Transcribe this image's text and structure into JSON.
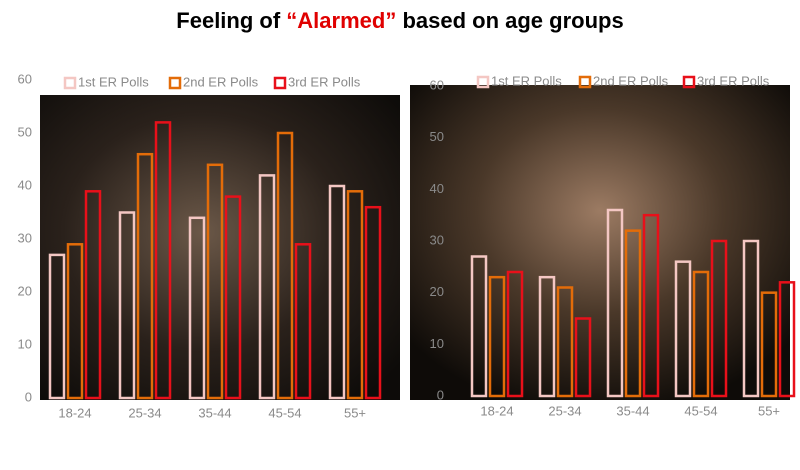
{
  "title": {
    "before": "Feeling of ",
    "highlight": "“Alarmed”",
    "after": " based on age groups"
  },
  "chart_data": [
    {
      "type": "bar",
      "categories": [
        "18-24",
        "25-34",
        "35-44",
        "45-54",
        "55+"
      ],
      "series": [
        {
          "name": "1st ER Polls",
          "color": "#f4c7c3",
          "values": [
            27,
            35,
            34,
            42,
            40
          ]
        },
        {
          "name": "2nd ER Polls",
          "color": "#e36c09",
          "values": [
            29,
            46,
            44,
            50,
            39
          ]
        },
        {
          "name": "3rd ER Polls",
          "color": "#e8101a",
          "values": [
            39,
            52,
            38,
            29,
            36
          ]
        }
      ],
      "ylim": [
        0,
        60
      ],
      "yticks": [
        0,
        10,
        20,
        30,
        40,
        50,
        60
      ],
      "legend": "top"
    },
    {
      "type": "bar",
      "categories": [
        "18-24",
        "25-34",
        "35-44",
        "45-54",
        "55+"
      ],
      "series": [
        {
          "name": "1st ER Polls",
          "color": "#f4c7c3",
          "values": [
            27,
            23,
            36,
            26,
            30
          ]
        },
        {
          "name": "2nd ER Polls",
          "color": "#e36c09",
          "values": [
            23,
            21,
            32,
            24,
            20
          ]
        },
        {
          "name": "3rd ER Polls",
          "color": "#e8101a",
          "values": [
            24,
            15,
            35,
            30,
            22
          ]
        }
      ],
      "ylim": [
        0,
        60
      ],
      "yticks": [
        0,
        10,
        20,
        30,
        40,
        50,
        60
      ],
      "legend": "top"
    }
  ]
}
